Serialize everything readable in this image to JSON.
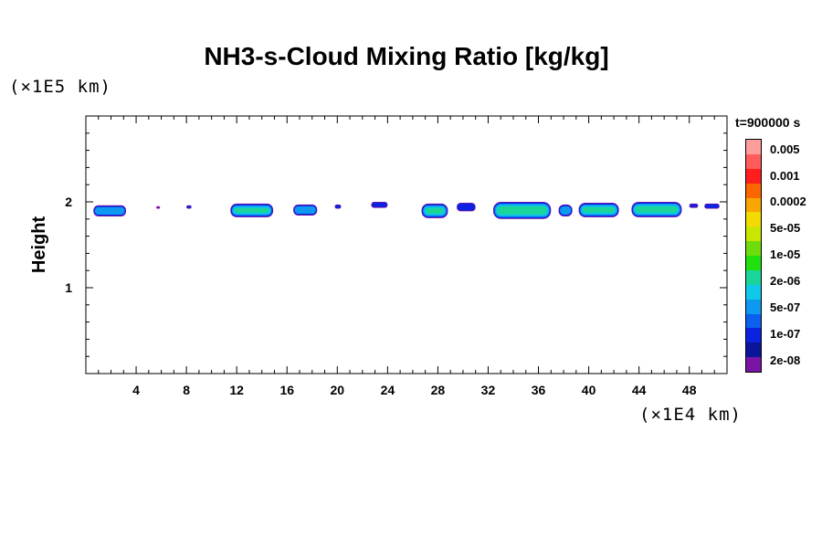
{
  "chart_data": {
    "type": "heatmap",
    "title": "NH3-s-Cloud Mixing Ratio [kg/kg]",
    "xlabel": "",
    "ylabel": "Height",
    "x_scale_label": "(×1E4 km)",
    "y_scale_label": "(×1E5 km)",
    "time_label": "t=900000 s",
    "xlim": [
      0,
      51
    ],
    "ylim": [
      0,
      3
    ],
    "x_ticks": [
      4,
      8,
      12,
      16,
      20,
      24,
      28,
      32,
      36,
      40,
      44,
      48
    ],
    "y_ticks": [
      1,
      2
    ],
    "colorbar": {
      "colors": [
        "#ff9d9d",
        "#ff5b5b",
        "#ff1d1d",
        "#fb6600",
        "#f8a600",
        "#f3da00",
        "#c8e600",
        "#6fdd0c",
        "#20e010",
        "#19d59a",
        "#11c8e8",
        "#0d98f2",
        "#0b60f0",
        "#0b22e0",
        "#0b1599",
        "#7a14a5"
      ],
      "labels": [
        "0.005",
        "0.001",
        "0.0002",
        "5e-05",
        "1e-05",
        "2e-06",
        "5e-07",
        "1e-07",
        "2e-08"
      ]
    },
    "cloud_regions": [
      {
        "x_start": 0.6,
        "x_end": 3.2,
        "height_bottom": 1.83,
        "height_top": 1.96,
        "max_level": "5e-07"
      },
      {
        "x_start": 5.6,
        "x_end": 5.9,
        "height_bottom": 1.92,
        "height_top": 1.95,
        "max_level": "2e-08"
      },
      {
        "x_start": 8.0,
        "x_end": 8.4,
        "height_bottom": 1.92,
        "height_top": 1.96,
        "max_level": "1e-07"
      },
      {
        "x_start": 11.5,
        "x_end": 14.9,
        "height_bottom": 1.82,
        "height_top": 1.98,
        "max_level": "2e-06"
      },
      {
        "x_start": 16.5,
        "x_end": 18.4,
        "height_bottom": 1.84,
        "height_top": 1.97,
        "max_level": "5e-07"
      },
      {
        "x_start": 19.8,
        "x_end": 20.3,
        "height_bottom": 1.92,
        "height_top": 1.97,
        "max_level": "1e-07"
      },
      {
        "x_start": 22.7,
        "x_end": 24.0,
        "height_bottom": 1.93,
        "height_top": 2.0,
        "max_level": "1e-07"
      },
      {
        "x_start": 26.7,
        "x_end": 28.8,
        "height_bottom": 1.81,
        "height_top": 1.98,
        "max_level": "2e-06"
      },
      {
        "x_start": 29.5,
        "x_end": 31.0,
        "height_bottom": 1.89,
        "height_top": 1.99,
        "max_level": "1e-07"
      },
      {
        "x_start": 32.4,
        "x_end": 37.0,
        "height_bottom": 1.8,
        "height_top": 2.0,
        "max_level": "2e-06"
      },
      {
        "x_start": 37.6,
        "x_end": 38.7,
        "height_bottom": 1.83,
        "height_top": 1.97,
        "max_level": "5e-07"
      },
      {
        "x_start": 39.2,
        "x_end": 42.4,
        "height_bottom": 1.82,
        "height_top": 1.99,
        "max_level": "2e-06"
      },
      {
        "x_start": 43.4,
        "x_end": 47.4,
        "height_bottom": 1.82,
        "height_top": 2.0,
        "max_level": "2e-06"
      },
      {
        "x_start": 48.0,
        "x_end": 48.7,
        "height_bottom": 1.93,
        "height_top": 1.98,
        "max_level": "1e-07"
      },
      {
        "x_start": 49.2,
        "x_end": 50.4,
        "height_bottom": 1.92,
        "height_top": 1.98,
        "max_level": "1e-07"
      }
    ]
  }
}
